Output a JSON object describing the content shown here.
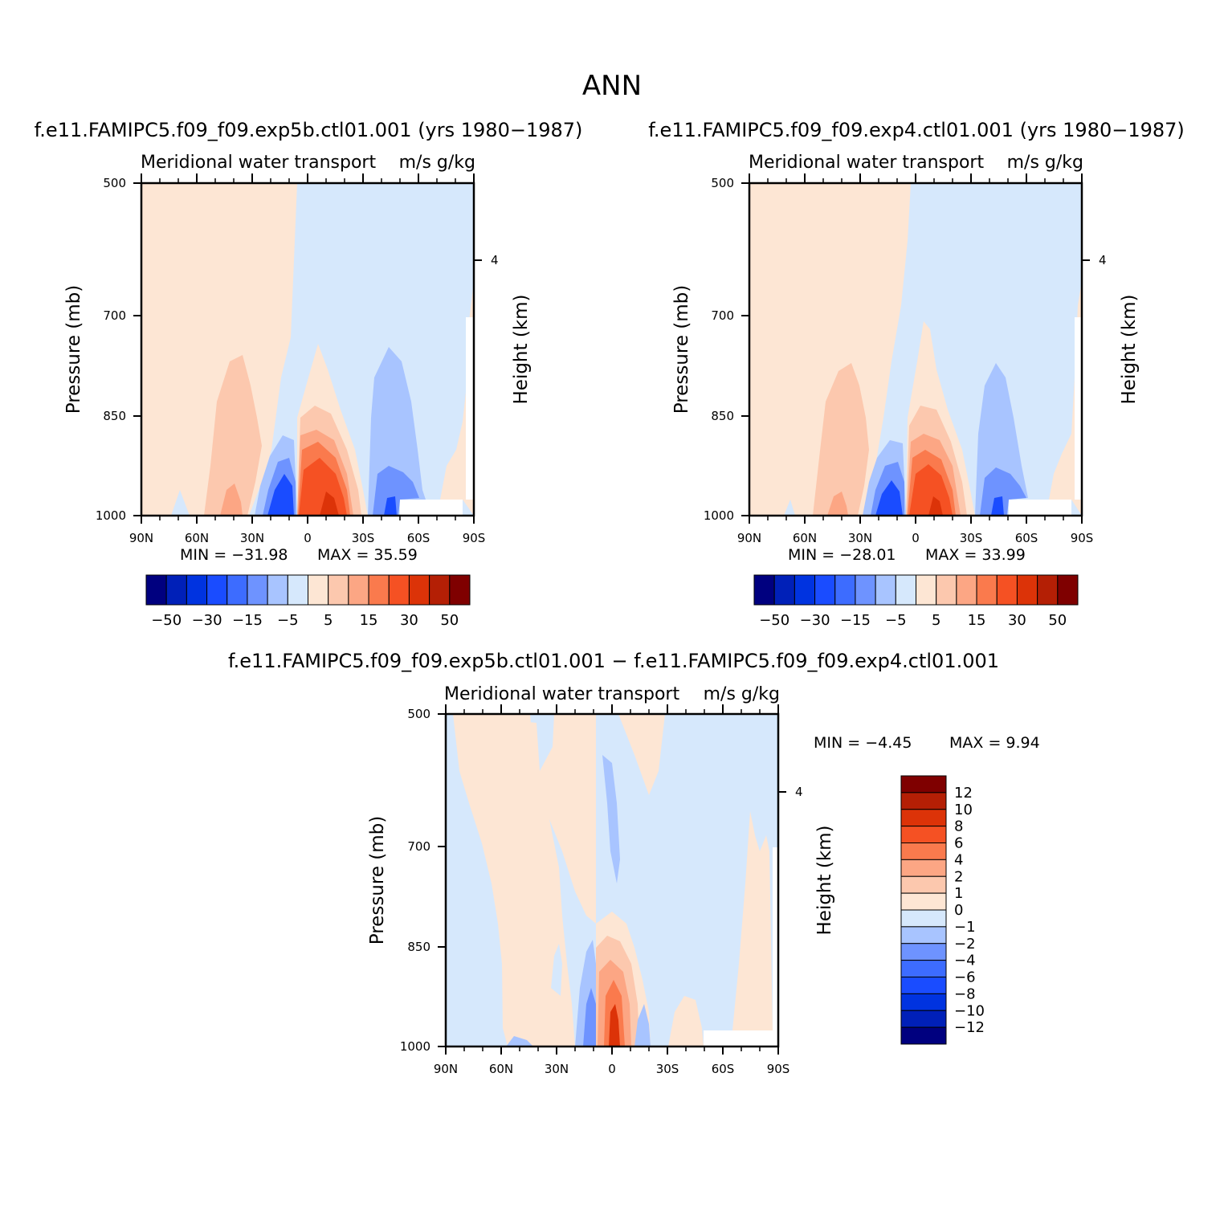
{
  "figure": {
    "title": "ANN"
  },
  "colorbar_main": {
    "colors": [
      "#00007f",
      "#0020b8",
      "#0033e0",
      "#1a4cff",
      "#3d6cff",
      "#6e93ff",
      "#a8c4ff",
      "#d6e8fc",
      "#fde6d4",
      "#fcc8ae",
      "#fca684",
      "#fa7a4d",
      "#f55123",
      "#dc3308",
      "#b41f05",
      "#7f0000"
    ],
    "tick_labels": [
      "−50",
      "−30",
      "−15",
      "−5",
      "5",
      "15",
      "30",
      "50"
    ]
  },
  "colorbar_diff": {
    "colors": [
      "#00007f",
      "#0020b8",
      "#0033e0",
      "#1a4cff",
      "#3d6cff",
      "#6e93ff",
      "#a8c4ff",
      "#d6e8fc",
      "#fde6d4",
      "#fcc8ae",
      "#fca684",
      "#fa7a4d",
      "#f55123",
      "#dc3308",
      "#b41f05",
      "#7f0000"
    ],
    "tick_labels": [
      "12",
      "10",
      "8",
      "6",
      "4",
      "2",
      "1",
      "0",
      "−1",
      "−2",
      "−4",
      "−6",
      "−8",
      "−10",
      "−12"
    ]
  },
  "chart_data": [
    {
      "type": "heatmap",
      "case": "f.e11.FAMIPC5.f09_f09.exp5b.ctl01.001 (yrs 1980−1987)",
      "variable": "Meridional water transport",
      "units": "m/s g/kg",
      "xlabel": "",
      "ylabel": "Pressure (mb)",
      "ylabel_right": "Height (km)",
      "x_ticks": [
        "90N",
        "60N",
        "30N",
        "0",
        "30S",
        "60S",
        "90S"
      ],
      "y_ticks": [
        500,
        700,
        850,
        1000
      ],
      "y_right_ticks": [
        "4"
      ],
      "ylim": [
        1000,
        500
      ],
      "min_text": "MIN =  −31.98",
      "max_text": "MAX =   35.59",
      "min": -31.98,
      "max": 35.59
    },
    {
      "type": "heatmap",
      "case": "f.e11.FAMIPC5.f09_f09.exp4.ctl01.001 (yrs 1980−1987)",
      "variable": "Meridional water transport",
      "units": "m/s g/kg",
      "xlabel": "",
      "ylabel": "Pressure (mb)",
      "ylabel_right": "Height (km)",
      "x_ticks": [
        "90N",
        "60N",
        "30N",
        "0",
        "30S",
        "60S",
        "90S"
      ],
      "y_ticks": [
        500,
        700,
        850,
        1000
      ],
      "y_right_ticks": [
        "4"
      ],
      "ylim": [
        1000,
        500
      ],
      "min_text": "MIN =  −28.01",
      "max_text": "MAX =   33.99",
      "min": -28.01,
      "max": 33.99
    },
    {
      "type": "heatmap",
      "case": "f.e11.FAMIPC5.f09_f09.exp5b.ctl01.001 − f.e11.FAMIPC5.f09_f09.exp4.ctl01.001",
      "variable": "Meridional water transport",
      "units": "m/s g/kg",
      "xlabel": "",
      "ylabel": "Pressure (mb)",
      "ylabel_right": "Height (km)",
      "x_ticks": [
        "90N",
        "60N",
        "30N",
        "0",
        "30S",
        "60S",
        "90S"
      ],
      "y_ticks": [
        500,
        700,
        850,
        1000
      ],
      "y_right_ticks": [
        "4"
      ],
      "ylim": [
        1000,
        500
      ],
      "min_text": "MIN =    −4.45",
      "max_text": "MAX =     9.94",
      "min": -4.45,
      "max": 9.94
    }
  ]
}
